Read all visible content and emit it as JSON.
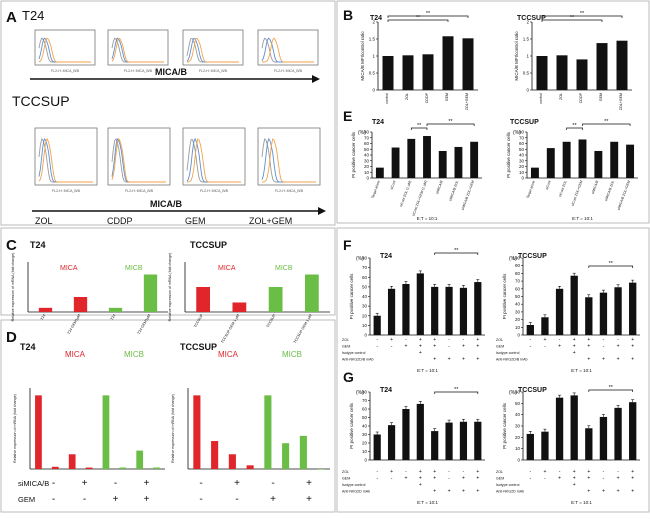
{
  "panels": {
    "A": {
      "letter": "A",
      "t24": {
        "label": "T24",
        "axis_label": "MICA/B",
        "hist_caption": "FL2-H: MICA_B/B"
      },
      "tccsup": {
        "label": "TCCSUP",
        "axis_label": "MICA/B",
        "hist_caption": "FL2-H: MICA_B/B",
        "conditions": [
          "ZOL",
          "CDDP",
          "GEM",
          "ZOL+GEM"
        ]
      }
    },
    "B": {
      "letter": "B"
    },
    "C": {
      "letter": "C"
    },
    "D": {
      "letter": "D",
      "table": {
        "rows": [
          {
            "label": "siMICA/B",
            "cells": [
              "-",
              "+",
              "-",
              "+",
              "-",
              "+",
              "-",
              "+"
            ]
          },
          {
            "label": "GEM",
            "cells": [
              "-",
              "-",
              "+",
              "+",
              "-",
              "-",
              "+",
              "+"
            ]
          }
        ]
      }
    },
    "E": {
      "letter": "E"
    },
    "F": {
      "letter": "F",
      "t24_table": {
        "rows": [
          {
            "label": "ZOL",
            "cells": [
              "-",
              "+",
              "-",
              "+",
              "+",
              "-",
              "-",
              "+"
            ]
          },
          {
            "label": "GEM",
            "cells": [
              "-",
              "-",
              "+",
              "+",
              "+",
              "-",
              "+",
              "+"
            ]
          },
          {
            "label": "Isotype control",
            "cells": [
              "",
              "",
              "",
              "+",
              "",
              "",
              "",
              ""
            ]
          },
          {
            "label": "Anti-NKG2D/B mAb",
            "cells": [
              "",
              "",
              "",
              "",
              "+",
              "+",
              "+",
              "+"
            ]
          }
        ],
        "footer": "E:T = 10:1"
      },
      "tccsup_table": {
        "rows": [
          {
            "label": "ZOL",
            "cells": [
              "-",
              "+",
              "-",
              "+",
              "+",
              "-",
              "-",
              "+"
            ]
          },
          {
            "label": "GEM",
            "cells": [
              "-",
              "-",
              "+",
              "+",
              "+",
              "-",
              "+",
              "+"
            ]
          },
          {
            "label": "Isotype control",
            "cells": [
              "",
              "",
              "",
              "+",
              "",
              "",
              "",
              ""
            ]
          },
          {
            "label": "Anti-NKG2D/B mAb",
            "cells": [
              "",
              "",
              "",
              "",
              "+",
              "+",
              "+",
              "+"
            ]
          }
        ],
        "footer": "E:T = 10:1"
      }
    },
    "G": {
      "letter": "G",
      "t24_table": {
        "rows": [
          {
            "label": "ZOL",
            "cells": [
              "-",
              "+",
              "-",
              "+",
              "+",
              "-",
              "-",
              "+"
            ]
          },
          {
            "label": "GEM",
            "cells": [
              "-",
              "-",
              "+",
              "+",
              "+",
              "-",
              "+",
              "+"
            ]
          },
          {
            "label": "Isotype control",
            "cells": [
              "",
              "",
              "",
              "+",
              "",
              "",
              "",
              ""
            ]
          },
          {
            "label": "Anti-NKG2D mAb",
            "cells": [
              "",
              "",
              "",
              "",
              "+",
              "+",
              "+",
              "+"
            ]
          }
        ],
        "footer": "E:T = 10:1"
      },
      "tccsup_table": {
        "rows": [
          {
            "label": "ZOL",
            "cells": [
              "-",
              "+",
              "-",
              "+",
              "+",
              "-",
              "-",
              "+"
            ]
          },
          {
            "label": "GEM",
            "cells": [
              "-",
              "-",
              "+",
              "+",
              "+",
              "-",
              "+",
              "+"
            ]
          },
          {
            "label": "Isotype control",
            "cells": [
              "",
              "",
              "",
              "+",
              "",
              "",
              "",
              ""
            ]
          },
          {
            "label": "Anti-NKG2D mAb",
            "cells": [
              "",
              "",
              "",
              "",
              "+",
              "+",
              "+",
              "+"
            ]
          }
        ],
        "footer": "E:T = 10:1"
      }
    }
  },
  "colors": {
    "bar": "#111111",
    "mica": "#e0262b",
    "micb": "#6abd45",
    "hist_blue": "#5b8fd6",
    "hist_orange": "#f2a24a",
    "hist_gray": "#9a9a9a"
  },
  "chart_data": [
    {
      "id": "B-T24",
      "type": "bar",
      "title": "T24",
      "ylabel": "MICA/B MFI/control ratio",
      "xlabel": "",
      "categories": [
        "control",
        "ZOL",
        "CDDP",
        "GEM",
        "ZOL+GEM"
      ],
      "values": [
        1.0,
        1.02,
        1.05,
        1.58,
        1.52
      ],
      "ylim": [
        0,
        2
      ],
      "yticks": [
        0,
        0.5,
        1,
        1.5,
        2
      ],
      "sig": [
        {
          "from": 0,
          "to": 3,
          "label": "**"
        },
        {
          "from": 0,
          "to": 4,
          "label": "**"
        }
      ]
    },
    {
      "id": "B-TCCSUP",
      "type": "bar",
      "title": "TCCSUP",
      "ylabel": "MICA/B MFI/control ratio",
      "xlabel": "",
      "categories": [
        "control",
        "ZOL",
        "CDDP",
        "GEM",
        "ZOL+GEM"
      ],
      "values": [
        1.0,
        1.02,
        0.9,
        1.38,
        1.45
      ],
      "ylim": [
        0,
        2
      ],
      "yticks": [
        0,
        0.5,
        1,
        1.5,
        2
      ],
      "sig": [
        {
          "from": 0,
          "to": 3,
          "label": "**"
        },
        {
          "from": 0,
          "to": 4,
          "label": "**"
        }
      ]
    },
    {
      "id": "C-T24",
      "type": "bar",
      "title": "T24",
      "ylabel": "Relative expression of mRNA (fold change)",
      "xlabel": "",
      "categories": [
        "T24",
        "T24 GEM1μM",
        "T24",
        "T24 GEM1μM"
      ],
      "values": [
        1.0,
        3.6,
        1.0,
        9.0
      ],
      "ylim": [
        0,
        12
      ],
      "series_labels": [
        "MICA",
        "MICB"
      ],
      "bar_series": [
        0,
        0,
        1,
        1
      ]
    },
    {
      "id": "C-TCCSUP",
      "type": "bar",
      "title": "TCCSUP",
      "ylabel": "Relative expression of mRNA (fold change)",
      "xlabel": "",
      "categories": [
        "TCCSUP",
        "TCCSUP GEM 1 μM",
        "TCCSUP",
        "TCCSUP GEM 1 μM"
      ],
      "values": [
        1.0,
        0.38,
        1.0,
        1.5
      ],
      "ylim": [
        0,
        2
      ],
      "series_labels": [
        "MICA",
        "MICB"
      ],
      "bar_series": [
        0,
        0,
        1,
        1
      ]
    },
    {
      "id": "D-T24",
      "type": "bar",
      "title": "T24",
      "ylabel": "Relative expression of mRNA (fold change)",
      "xlabel": "",
      "categories": [
        "1",
        "2",
        "3",
        "4",
        "5",
        "6",
        "7",
        "8"
      ],
      "values": [
        1.0,
        0.03,
        0.2,
        0.02,
        1.0,
        0.02,
        0.25,
        0.02
      ],
      "ylim": [
        0,
        1.1
      ],
      "series_labels": [
        "MICA",
        "MICB"
      ],
      "bar_series": [
        0,
        0,
        0,
        0,
        1,
        1,
        1,
        1
      ]
    },
    {
      "id": "D-TCCSUP",
      "type": "bar",
      "title": "TCCSUP",
      "ylabel": "Relative expression of mRNA (fold change)",
      "xlabel": "",
      "categories": [
        "1",
        "2",
        "3",
        "4",
        "5",
        "6",
        "7",
        "8"
      ],
      "values": [
        1.0,
        0.38,
        0.2,
        0.05,
        1.0,
        0.35,
        0.45,
        0.0
      ],
      "ylim": [
        0,
        1.1
      ],
      "series_labels": [
        "MICA",
        "MICB"
      ],
      "bar_series": [
        0,
        0,
        0,
        0,
        1,
        1,
        1,
        1
      ]
    },
    {
      "id": "E-T24",
      "type": "bar",
      "title": "T24",
      "ylabel": "PI positive cancer cells",
      "xlabel": "E:T = 10:1",
      "categories": [
        "Target alone",
        "siCont",
        "siCont ZOL (1 μM)",
        "siCont ZOL+GEM (1 μM)",
        "siMICA/B",
        "siMICA/B ZOL",
        "siMICA/B ZOL+GEM"
      ],
      "values": [
        18,
        53,
        68,
        73,
        47,
        54,
        63
      ],
      "ylim": [
        0,
        80
      ],
      "yticks": [
        0,
        10,
        20,
        30,
        40,
        50,
        60,
        70,
        80
      ],
      "yunit": "(%)",
      "sig": [
        {
          "from": 2,
          "to": 3,
          "label": "**"
        },
        {
          "from": 3,
          "to": 6,
          "label": "**"
        }
      ]
    },
    {
      "id": "E-TCCSUP",
      "type": "bar",
      "title": "TCCSUP",
      "ylabel": "PI positive cancer cells",
      "xlabel": "E:T = 10:1",
      "categories": [
        "Target alone",
        "siCont",
        "siCont ZOL",
        "siCont ZOL+GEM",
        "siMICA/B",
        "siMICA/B ZOL",
        "siMICA/B ZOL+GEM"
      ],
      "values": [
        18,
        52,
        63,
        67,
        47,
        63,
        58
      ],
      "ylim": [
        0,
        80
      ],
      "yticks": [
        0,
        10,
        20,
        30,
        40,
        50,
        60,
        70,
        80
      ],
      "yunit": "(%)",
      "sig": [
        {
          "from": 2,
          "to": 3,
          "label": "**"
        },
        {
          "from": 3,
          "to": 6,
          "label": "**"
        }
      ]
    },
    {
      "id": "F-T24",
      "type": "bar",
      "title": "T24",
      "ylabel": "PI positive cancer cells",
      "xlabel": "E:T = 10:1",
      "categories": [
        "1",
        "2",
        "3",
        "4",
        "5",
        "6",
        "7",
        "8"
      ],
      "values": [
        20,
        48,
        53,
        64,
        50,
        50,
        49,
        55
      ],
      "ylim": [
        0,
        80
      ],
      "yticks": [
        0,
        10,
        20,
        30,
        40,
        50,
        60,
        70,
        80
      ],
      "yunit": "(%)",
      "sig": [
        {
          "from": 4,
          "to": 7,
          "label": "**"
        }
      ]
    },
    {
      "id": "F-TCCSUP",
      "type": "bar",
      "title": "TCCSUP",
      "ylabel": "PI positive cancer cells",
      "xlabel": "E:T = 10:1",
      "categories": [
        "1",
        "2",
        "3",
        "4",
        "5",
        "6",
        "7",
        "8"
      ],
      "values": [
        13,
        23,
        60,
        77,
        49,
        55,
        62,
        68
      ],
      "ylim": [
        0,
        100
      ],
      "yticks": [
        0,
        10,
        20,
        30,
        40,
        50,
        60,
        70,
        80,
        90,
        100
      ],
      "yunit": "(%)",
      "sig": [
        {
          "from": 4,
          "to": 7,
          "label": "**"
        }
      ]
    },
    {
      "id": "G-T24",
      "type": "bar",
      "title": "T24",
      "ylabel": "PI positive cancer cells",
      "xlabel": "E:T = 10:1",
      "categories": [
        "1",
        "2",
        "3",
        "4",
        "5",
        "6",
        "7",
        "8"
      ],
      "values": [
        30,
        41,
        60,
        66,
        34,
        44,
        45,
        45
      ],
      "ylim": [
        0,
        80
      ],
      "yticks": [
        0,
        10,
        20,
        30,
        40,
        50,
        60,
        70,
        80
      ],
      "yunit": "(%)",
      "sig": [
        {
          "from": 4,
          "to": 7,
          "label": "**"
        }
      ]
    },
    {
      "id": "G-TCCSUP",
      "type": "bar",
      "title": "TCCSUP",
      "ylabel": "PI positive cancer cells",
      "xlabel": "E:T = 10:1",
      "categories": [
        "1",
        "2",
        "3",
        "4",
        "5",
        "6",
        "7",
        "8"
      ],
      "values": [
        23,
        25,
        55,
        57,
        28,
        38,
        46,
        51
      ],
      "ylim": [
        0,
        60
      ],
      "yticks": [
        0,
        10,
        20,
        30,
        40,
        50,
        60
      ],
      "yunit": "(%)",
      "sig": [
        {
          "from": 4,
          "to": 7,
          "label": "**"
        }
      ]
    }
  ]
}
